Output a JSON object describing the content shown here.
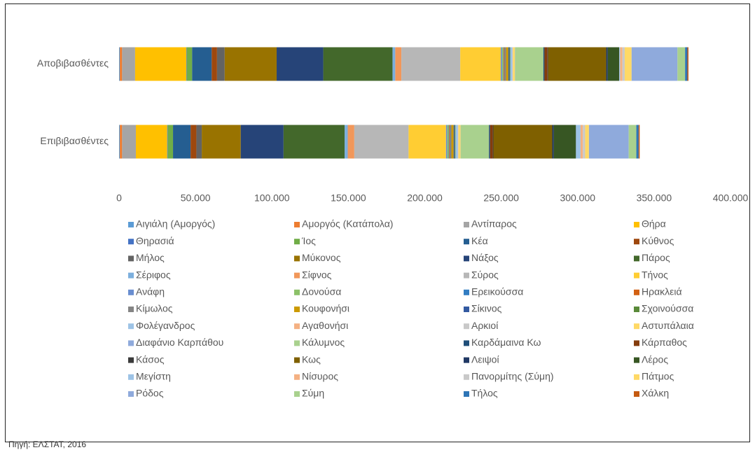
{
  "chart_data": {
    "type": "stacked_barh",
    "categories": [
      "Αποβιβασθέντες",
      "Επιβιβασθέντες"
    ],
    "series": [
      {
        "name": "Αιγιάλη (Αμοργός)",
        "color": "#5b9bd5",
        "values": [
          500,
          500
        ]
      },
      {
        "name": "Αμοργός (Κατάπολα)",
        "color": "#ed7d31",
        "values": [
          1500,
          1500
        ]
      },
      {
        "name": "Αντίπαρος",
        "color": "#a5a5a5",
        "values": [
          8500,
          9000
        ]
      },
      {
        "name": "Θήρα",
        "color": "#ffc000",
        "values": [
          33500,
          20500
        ]
      },
      {
        "name": "Θηρασιά",
        "color": "#4472c4",
        "values": [
          300,
          300
        ]
      },
      {
        "name": "Ίος",
        "color": "#70ad47",
        "values": [
          3500,
          3500
        ]
      },
      {
        "name": "Κέα",
        "color": "#255e91",
        "values": [
          12800,
          11500
        ]
      },
      {
        "name": "Κύθνος",
        "color": "#9e480e",
        "values": [
          3500,
          3800
        ]
      },
      {
        "name": "Μήλος",
        "color": "#636363",
        "values": [
          5000,
          3500
        ]
      },
      {
        "name": "Μύκονος",
        "color": "#997300",
        "values": [
          34000,
          25500
        ]
      },
      {
        "name": "Νάξος",
        "color": "#264478",
        "values": [
          30500,
          28000
        ]
      },
      {
        "name": "Πάρος",
        "color": "#43682b",
        "values": [
          45300,
          40000
        ]
      },
      {
        "name": "Σέριφος",
        "color": "#7cafdd",
        "values": [
          1800,
          2000
        ]
      },
      {
        "name": "Σίφνος",
        "color": "#f1975a",
        "values": [
          4000,
          4300
        ]
      },
      {
        "name": "Σύρος",
        "color": "#b7b7b7",
        "values": [
          38500,
          35500
        ]
      },
      {
        "name": "Τήνος",
        "color": "#ffcd33",
        "values": [
          26500,
          24500
        ]
      },
      {
        "name": "Ανάφη",
        "color": "#698ed0",
        "values": [
          800,
          800
        ]
      },
      {
        "name": "Δονούσα",
        "color": "#8cc168",
        "values": [
          900,
          900
        ]
      },
      {
        "name": "Ερεικούσσα",
        "color": "#327dc2",
        "values": [
          200,
          200
        ]
      },
      {
        "name": "Ηρακλειά",
        "color": "#d26012",
        "values": [
          400,
          400
        ]
      },
      {
        "name": "Κίμωλος",
        "color": "#848484",
        "values": [
          1200,
          1200
        ]
      },
      {
        "name": "Κουφονήσι",
        "color": "#cc9a00",
        "values": [
          1500,
          1500
        ]
      },
      {
        "name": "Σίκινος",
        "color": "#335aa1",
        "values": [
          700,
          700
        ]
      },
      {
        "name": "Σχοινούσσα",
        "color": "#5a8a39",
        "values": [
          500,
          500
        ]
      },
      {
        "name": "Φολέγανδρος",
        "color": "#9dc3e6",
        "values": [
          1500,
          1600
        ]
      },
      {
        "name": "Αγαθονήσι",
        "color": "#f4b183",
        "values": [
          200,
          200
        ]
      },
      {
        "name": "Αρκιοί",
        "color": "#c9c9c9",
        "values": [
          100,
          100
        ]
      },
      {
        "name": "Αστυπάλαια",
        "color": "#ffd966",
        "values": [
          1300,
          1400
        ]
      },
      {
        "name": "Διαφάνιο Καρπάθου",
        "color": "#8faadc",
        "values": [
          100,
          100
        ]
      },
      {
        "name": "Κάλυμνος",
        "color": "#a9d18e",
        "values": [
          18500,
          18500
        ]
      },
      {
        "name": "Καρδάμαινα Κω",
        "color": "#1f4e79",
        "values": [
          700,
          700
        ]
      },
      {
        "name": "Κάρπαθος",
        "color": "#843c0c",
        "values": [
          2000,
          1800
        ]
      },
      {
        "name": "Κάσος",
        "color": "#3a3a3a",
        "values": [
          400,
          400
        ]
      },
      {
        "name": "Κως",
        "color": "#7f6000",
        "values": [
          38000,
          38500
        ]
      },
      {
        "name": "Λειψοί",
        "color": "#203864",
        "values": [
          1000,
          1000
        ]
      },
      {
        "name": "Λέρος",
        "color": "#375623",
        "values": [
          7500,
          14500
        ]
      },
      {
        "name": "Μεγίστη",
        "color": "#9dc3e6",
        "values": [
          600,
          3000
        ]
      },
      {
        "name": "Νίσυρος",
        "color": "#f4b183",
        "values": [
          1500,
          1500
        ]
      },
      {
        "name": "Πανορμίτης (Σύμη)",
        "color": "#c9c9c9",
        "values": [
          1500,
          1500
        ]
      },
      {
        "name": "Πάτμος",
        "color": "#ffd966",
        "values": [
          4500,
          2500
        ]
      },
      {
        "name": "Ρόδος",
        "color": "#8faadc",
        "values": [
          30000,
          26000
        ]
      },
      {
        "name": "Σύμη",
        "color": "#a9d18e",
        "values": [
          5000,
          5000
        ]
      },
      {
        "name": "Τήλος",
        "color": "#2e75b6",
        "values": [
          1500,
          1500
        ]
      },
      {
        "name": "Χάλκη",
        "color": "#c55a11",
        "values": [
          700,
          700
        ]
      }
    ],
    "xlim": [
      0,
      400000
    ],
    "xticks": [
      0,
      {
        "value": 50000,
        "label": "50.000"
      },
      {
        "value": 100000,
        "label": "100.000"
      },
      {
        "value": 150000,
        "label": "150.000"
      },
      {
        "value": 200000,
        "label": "200.000"
      },
      {
        "value": 250000,
        "label": "250.000"
      },
      {
        "value": 300000,
        "label": "300.000"
      },
      {
        "value": 350000,
        "label": "350.000"
      },
      {
        "value": 400000,
        "label": "400.000"
      }
    ],
    "grid": false,
    "legend": "bottom",
    "source": "Πηγή: ΕΛΣΤΑΤ, 2016"
  }
}
